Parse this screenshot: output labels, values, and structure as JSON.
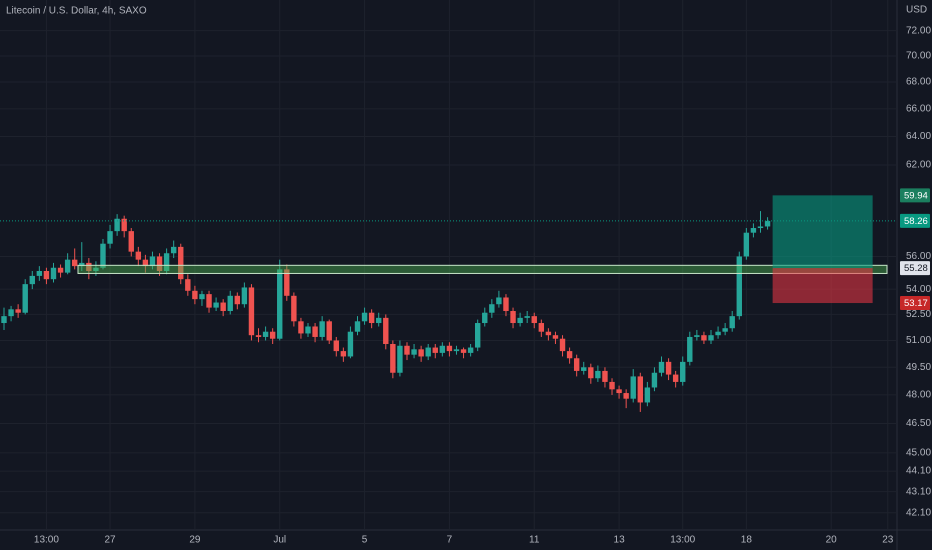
{
  "chart_data": {
    "type": "candlestick",
    "title": "Litecoin / U.S. Dollar, 4h, SAXO",
    "currency": "USD",
    "log": true,
    "grid": true,
    "up_color": "#26a69a",
    "down_color": "#ef5350",
    "ylim": [
      41.3,
      74.5
    ],
    "yticks": [
      {
        "value": 72,
        "label": "72.00"
      },
      {
        "value": 70,
        "label": "70.00"
      },
      {
        "value": 68,
        "label": "68.00"
      },
      {
        "value": 66,
        "label": "66.00"
      },
      {
        "value": 64,
        "label": "64.00"
      },
      {
        "value": 62,
        "label": "62.00"
      },
      {
        "value": 56,
        "label": "56.00"
      },
      {
        "value": 54,
        "label": "54.00"
      },
      {
        "value": 52.5,
        "label": "52.50"
      },
      {
        "value": 51,
        "label": "51.00"
      },
      {
        "value": 49.5,
        "label": "49.50"
      },
      {
        "value": 48,
        "label": "48.00"
      },
      {
        "value": 46.5,
        "label": "46.50"
      },
      {
        "value": 45,
        "label": "45.00"
      },
      {
        "value": 44.1,
        "label": "44.10"
      },
      {
        "value": 43.1,
        "label": "43.10"
      },
      {
        "value": 42.1,
        "label": "42.10"
      }
    ],
    "categories": [
      null,
      null,
      null,
      null,
      null,
      null,
      "13:00",
      null,
      null,
      null,
      null,
      null,
      null,
      null,
      null,
      "27",
      null,
      null,
      null,
      null,
      null,
      null,
      null,
      null,
      null,
      null,
      null,
      "29",
      null,
      null,
      null,
      null,
      null,
      null,
      null,
      null,
      null,
      null,
      null,
      "Jul",
      null,
      null,
      null,
      null,
      null,
      null,
      null,
      null,
      null,
      null,
      null,
      "5",
      null,
      null,
      null,
      null,
      null,
      null,
      null,
      null,
      null,
      null,
      null,
      "7",
      null,
      null,
      null,
      null,
      null,
      null,
      null,
      null,
      null,
      null,
      null,
      "11",
      null,
      null,
      null,
      null,
      null,
      null,
      null,
      null,
      null,
      null,
      null,
      "13",
      null,
      null,
      null,
      null,
      null,
      null,
      null,
      null,
      "13:00",
      null,
      null,
      null,
      null,
      null,
      null,
      null,
      null,
      "18",
      null,
      null,
      null,
      null,
      null,
      null,
      null,
      null,
      null,
      null,
      null,
      "20",
      null,
      null,
      null,
      null,
      null,
      null,
      null,
      "23"
    ],
    "ohlc": [
      [
        52.0,
        52.9,
        51.6,
        52.4
      ],
      [
        52.4,
        53.0,
        52.1,
        52.8
      ],
      [
        52.8,
        53.1,
        52.3,
        52.6
      ],
      [
        52.6,
        54.6,
        52.5,
        54.3
      ],
      [
        54.3,
        55.1,
        54.0,
        54.8
      ],
      [
        54.8,
        55.4,
        54.5,
        55.1
      ],
      [
        55.1,
        55.3,
        54.3,
        54.6
      ],
      [
        54.6,
        55.6,
        54.4,
        55.3
      ],
      [
        55.3,
        55.5,
        54.7,
        55.0
      ],
      [
        55.0,
        56.2,
        54.9,
        55.8
      ],
      [
        55.8,
        56.5,
        55.2,
        55.4
      ],
      [
        55.4,
        56.9,
        55.1,
        55.6
      ],
      [
        55.6,
        55.9,
        54.6,
        55.1
      ],
      [
        55.1,
        55.7,
        54.8,
        55.3
      ],
      [
        55.3,
        57.1,
        55.2,
        56.8
      ],
      [
        56.8,
        58.0,
        56.5,
        57.6
      ],
      [
        57.6,
        58.7,
        57.3,
        58.4
      ],
      [
        58.4,
        58.6,
        57.2,
        57.6
      ],
      [
        57.6,
        57.8,
        56.0,
        56.3
      ],
      [
        56.3,
        56.6,
        55.4,
        55.8
      ],
      [
        55.8,
        56.1,
        55.0,
        55.4
      ],
      [
        55.4,
        56.3,
        55.2,
        56.0
      ],
      [
        56.0,
        56.2,
        54.8,
        55.1
      ],
      [
        55.1,
        56.5,
        54.9,
        56.2
      ],
      [
        56.2,
        57.0,
        55.9,
        56.6
      ],
      [
        56.6,
        56.8,
        54.3,
        54.6
      ],
      [
        54.6,
        54.9,
        53.6,
        53.9
      ],
      [
        53.9,
        54.2,
        53.1,
        53.4
      ],
      [
        53.4,
        53.9,
        53.0,
        53.7
      ],
      [
        53.7,
        53.9,
        52.6,
        52.9
      ],
      [
        52.9,
        53.5,
        52.7,
        53.2
      ],
      [
        53.2,
        53.4,
        52.4,
        52.7
      ],
      [
        52.7,
        53.9,
        52.5,
        53.6
      ],
      [
        53.6,
        53.8,
        52.8,
        53.1
      ],
      [
        53.1,
        54.4,
        52.9,
        54.1
      ],
      [
        54.1,
        54.3,
        51.0,
        51.3
      ],
      [
        51.3,
        51.7,
        50.9,
        51.2
      ],
      [
        51.2,
        51.8,
        51.0,
        51.5
      ],
      [
        51.5,
        51.7,
        50.8,
        51.1
      ],
      [
        51.1,
        55.8,
        51.0,
        55.2
      ],
      [
        55.2,
        55.5,
        53.3,
        53.6
      ],
      [
        53.6,
        53.8,
        51.8,
        52.1
      ],
      [
        52.1,
        52.3,
        51.1,
        51.4
      ],
      [
        51.4,
        52.0,
        51.2,
        51.8
      ],
      [
        51.8,
        52.0,
        50.9,
        51.2
      ],
      [
        51.2,
        52.4,
        51.0,
        52.1
      ],
      [
        52.1,
        52.2,
        50.8,
        51.0
      ],
      [
        51.0,
        51.2,
        50.1,
        50.4
      ],
      [
        50.4,
        50.6,
        49.8,
        50.1
      ],
      [
        50.1,
        51.8,
        50.0,
        51.5
      ],
      [
        51.5,
        52.4,
        51.3,
        52.1
      ],
      [
        52.1,
        52.9,
        51.9,
        52.6
      ],
      [
        52.6,
        52.8,
        51.7,
        52.0
      ],
      [
        52.0,
        52.6,
        51.8,
        52.3
      ],
      [
        52.3,
        52.5,
        50.5,
        50.8
      ],
      [
        50.8,
        51.0,
        48.9,
        49.2
      ],
      [
        49.2,
        51.0,
        49.0,
        50.7
      ],
      [
        50.7,
        50.9,
        49.9,
        50.2
      ],
      [
        50.2,
        50.8,
        50.0,
        50.5
      ],
      [
        50.5,
        50.7,
        49.8,
        50.1
      ],
      [
        50.1,
        50.8,
        49.9,
        50.6
      ],
      [
        50.6,
        50.8,
        50.0,
        50.3
      ],
      [
        50.3,
        50.9,
        50.1,
        50.7
      ],
      [
        50.7,
        50.9,
        50.1,
        50.4
      ],
      [
        50.4,
        50.7,
        50.2,
        50.5
      ],
      [
        50.5,
        50.6,
        50.0,
        50.3
      ],
      [
        50.3,
        50.8,
        50.1,
        50.6
      ],
      [
        50.6,
        52.2,
        50.4,
        52.0
      ],
      [
        52.0,
        52.9,
        51.8,
        52.6
      ],
      [
        52.6,
        53.4,
        52.3,
        53.1
      ],
      [
        53.1,
        53.9,
        52.9,
        53.5
      ],
      [
        53.5,
        53.7,
        52.4,
        52.7
      ],
      [
        52.7,
        52.9,
        51.7,
        52.0
      ],
      [
        52.0,
        52.6,
        51.8,
        52.3
      ],
      [
        52.3,
        52.7,
        52.0,
        52.4
      ],
      [
        52.4,
        52.6,
        51.7,
        52.0
      ],
      [
        52.0,
        52.2,
        51.2,
        51.5
      ],
      [
        51.5,
        51.7,
        51.0,
        51.3
      ],
      [
        51.3,
        51.5,
        50.8,
        51.1
      ],
      [
        51.1,
        51.3,
        50.1,
        50.4
      ],
      [
        50.4,
        50.6,
        49.7,
        50.0
      ],
      [
        50.0,
        50.2,
        49.0,
        49.3
      ],
      [
        49.3,
        49.8,
        49.1,
        49.5
      ],
      [
        49.5,
        49.7,
        48.6,
        48.9
      ],
      [
        48.9,
        49.6,
        48.7,
        49.3
      ],
      [
        49.3,
        49.5,
        48.4,
        48.7
      ],
      [
        48.7,
        48.9,
        48.0,
        48.3
      ],
      [
        48.3,
        48.5,
        47.8,
        48.1
      ],
      [
        48.1,
        48.3,
        47.3,
        47.8
      ],
      [
        47.8,
        49.4,
        47.6,
        49.0
      ],
      [
        49.0,
        49.2,
        47.1,
        47.6
      ],
      [
        47.6,
        48.7,
        47.4,
        48.4
      ],
      [
        48.4,
        49.5,
        48.2,
        49.2
      ],
      [
        49.2,
        50.1,
        49.0,
        49.8
      ],
      [
        49.8,
        50.0,
        48.8,
        49.1
      ],
      [
        49.1,
        49.3,
        48.4,
        48.7
      ],
      [
        48.7,
        50.1,
        48.5,
        49.8
      ],
      [
        49.8,
        51.5,
        49.6,
        51.2
      ],
      [
        51.2,
        51.6,
        51.0,
        51.3
      ],
      [
        51.3,
        51.5,
        50.8,
        51.0
      ],
      [
        51.0,
        51.6,
        50.8,
        51.3
      ],
      [
        51.3,
        51.8,
        51.1,
        51.5
      ],
      [
        51.5,
        52.0,
        51.3,
        51.7
      ],
      [
        51.7,
        52.7,
        51.5,
        52.4
      ],
      [
        52.4,
        56.3,
        52.2,
        56.0
      ],
      [
        56.0,
        57.8,
        55.8,
        57.5
      ],
      [
        57.5,
        58.1,
        57.2,
        57.8
      ],
      [
        57.8,
        58.9,
        57.5,
        57.9
      ],
      [
        57.9,
        58.5,
        57.7,
        58.26
      ],
      null,
      null,
      null,
      null,
      null,
      null,
      null,
      null,
      null,
      null,
      null,
      null,
      null,
      null,
      null,
      null,
      null
    ],
    "last_price": 58.26,
    "zone": [
      54.95,
      55.45
    ],
    "position": {
      "target": 59.94,
      "entry": 55.28,
      "stop": 53.17
    }
  }
}
